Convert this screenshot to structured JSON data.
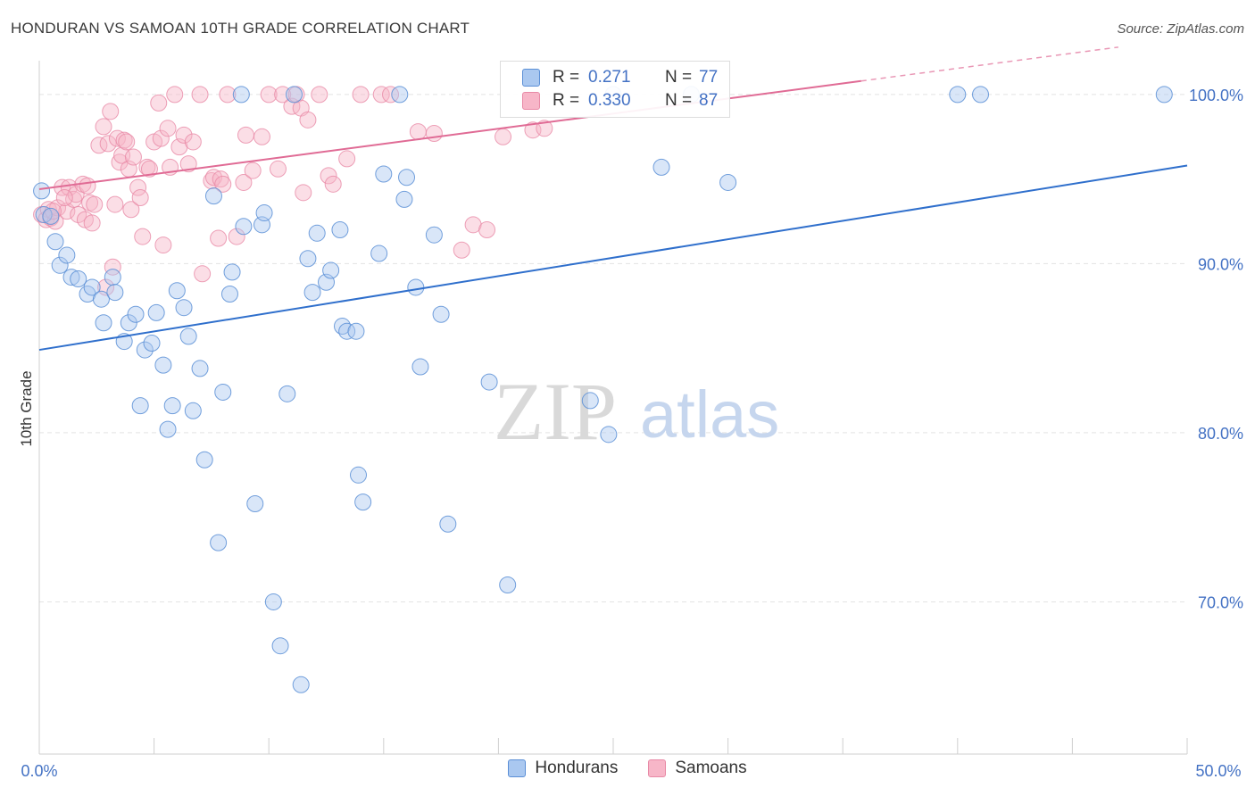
{
  "header": {
    "title": "HONDURAN VS SAMOAN 10TH GRADE CORRELATION CHART",
    "source": "Source: ZipAtlas.com"
  },
  "watermark": {
    "zip": "ZIP",
    "atlas": "atlas"
  },
  "colors": {
    "honduran_fill": "#aac8f0",
    "honduran_stroke": "#5b8fd6",
    "honduran_line": "#2f6fcc",
    "samoan_fill": "#f7b6c8",
    "samoan_stroke": "#e889a6",
    "samoan_line": "#e06b95",
    "tick_label": "#4472c4",
    "grid": "#e3e3e3"
  },
  "legend_top": {
    "rows": [
      {
        "r_label": "R =",
        "r_value": "0.271",
        "n_label": "N =",
        "n_value": "77"
      },
      {
        "r_label": "R =",
        "r_value": "0.330",
        "n_label": "N =",
        "n_value": "87"
      }
    ]
  },
  "legend_bottom": {
    "items": [
      "Hondurans",
      "Samoans"
    ]
  },
  "chart_data": {
    "type": "scatter",
    "ylabel": "10th Grade",
    "xlim": [
      0,
      50
    ],
    "ylim": [
      61,
      102
    ],
    "x_tick_labels": [
      "0.0%",
      "50.0%"
    ],
    "y_ticks": [
      70,
      80,
      90,
      100
    ],
    "y_tick_labels": [
      "70.0%",
      "80.0%",
      "90.0%",
      "100.0%"
    ],
    "grid": true,
    "legend_position": "top-center",
    "series": [
      {
        "name": "Hondurans",
        "r": 0.271,
        "n": 77,
        "trend": {
          "x0": 0,
          "y0": 84.9,
          "x1": 50,
          "y1": 95.8
        },
        "points": [
          [
            0.1,
            94.3
          ],
          [
            0.2,
            92.9
          ],
          [
            0.7,
            91.3
          ],
          [
            0.9,
            89.9
          ],
          [
            1.2,
            90.5
          ],
          [
            1.4,
            89.2
          ],
          [
            1.7,
            89.1
          ],
          [
            2.1,
            88.2
          ],
          [
            2.3,
            88.6
          ],
          [
            2.7,
            87.9
          ],
          [
            2.8,
            86.5
          ],
          [
            3.2,
            89.2
          ],
          [
            3.3,
            88.3
          ],
          [
            3.7,
            85.4
          ],
          [
            3.9,
            86.5
          ],
          [
            4.2,
            87.0
          ],
          [
            4.4,
            81.6
          ],
          [
            4.6,
            84.9
          ],
          [
            4.9,
            85.3
          ],
          [
            5.1,
            87.1
          ],
          [
            5.4,
            84.0
          ],
          [
            5.6,
            80.2
          ],
          [
            5.8,
            81.6
          ],
          [
            6.0,
            88.4
          ],
          [
            6.3,
            87.4
          ],
          [
            6.5,
            85.7
          ],
          [
            6.7,
            81.3
          ],
          [
            7.0,
            83.8
          ],
          [
            7.2,
            78.4
          ],
          [
            7.6,
            94.0
          ],
          [
            7.8,
            73.5
          ],
          [
            8.0,
            82.4
          ],
          [
            8.3,
            88.2
          ],
          [
            8.4,
            89.5
          ],
          [
            8.8,
            100.0
          ],
          [
            8.9,
            92.2
          ],
          [
            9.4,
            75.8
          ],
          [
            9.7,
            92.3
          ],
          [
            9.8,
            93.0
          ],
          [
            10.2,
            70.0
          ],
          [
            10.5,
            67.4
          ],
          [
            10.8,
            82.3
          ],
          [
            11.1,
            100.0
          ],
          [
            11.4,
            65.1
          ],
          [
            11.7,
            90.3
          ],
          [
            11.9,
            88.3
          ],
          [
            12.1,
            91.8
          ],
          [
            12.5,
            88.9
          ],
          [
            12.7,
            89.6
          ],
          [
            13.1,
            92.0
          ],
          [
            13.2,
            86.3
          ],
          [
            13.4,
            86.0
          ],
          [
            13.8,
            86.0
          ],
          [
            13.9,
            77.5
          ],
          [
            14.1,
            75.9
          ],
          [
            14.8,
            90.6
          ],
          [
            15.0,
            95.3
          ],
          [
            15.7,
            100.0
          ],
          [
            15.9,
            93.8
          ],
          [
            16.0,
            95.1
          ],
          [
            16.4,
            88.6
          ],
          [
            16.6,
            83.9
          ],
          [
            17.2,
            91.7
          ],
          [
            17.5,
            87.0
          ],
          [
            17.8,
            74.6
          ],
          [
            19.6,
            83.0
          ],
          [
            20.4,
            71.0
          ],
          [
            24.0,
            81.9
          ],
          [
            24.8,
            79.9
          ],
          [
            25.0,
            100.0
          ],
          [
            27.1,
            95.7
          ],
          [
            28.4,
            100.0
          ],
          [
            30.0,
            94.8
          ],
          [
            40.0,
            100.0
          ],
          [
            41.0,
            100.0
          ],
          [
            49.0,
            100.0
          ],
          [
            0.5,
            92.8
          ]
        ]
      },
      {
        "name": "Samoans",
        "r": 0.33,
        "n": 87,
        "trend": {
          "x0": 0,
          "y0": 94.4,
          "x1": 35.8,
          "y1": 100.8,
          "dash_x1": 47,
          "dash_y1": 102.8
        },
        "points": [
          [
            0.1,
            92.9
          ],
          [
            0.3,
            92.6
          ],
          [
            0.4,
            93.2
          ],
          [
            0.5,
            92.7
          ],
          [
            0.7,
            92.5
          ],
          [
            0.8,
            93.3
          ],
          [
            1.0,
            94.5
          ],
          [
            1.2,
            93.1
          ],
          [
            1.3,
            94.5
          ],
          [
            1.5,
            93.8
          ],
          [
            1.6,
            94.1
          ],
          [
            1.7,
            92.9
          ],
          [
            1.9,
            94.7
          ],
          [
            2.0,
            92.6
          ],
          [
            2.1,
            94.6
          ],
          [
            2.2,
            93.6
          ],
          [
            2.3,
            92.4
          ],
          [
            2.4,
            93.5
          ],
          [
            2.6,
            97.0
          ],
          [
            2.8,
            98.1
          ],
          [
            2.9,
            88.6
          ],
          [
            3.0,
            97.1
          ],
          [
            3.1,
            99.0
          ],
          [
            3.2,
            89.8
          ],
          [
            3.3,
            93.5
          ],
          [
            3.4,
            97.4
          ],
          [
            3.5,
            96.0
          ],
          [
            3.6,
            96.4
          ],
          [
            3.7,
            97.3
          ],
          [
            3.8,
            97.2
          ],
          [
            3.9,
            95.6
          ],
          [
            4.0,
            93.2
          ],
          [
            4.1,
            96.3
          ],
          [
            4.3,
            94.5
          ],
          [
            4.4,
            93.9
          ],
          [
            4.5,
            91.6
          ],
          [
            4.7,
            95.7
          ],
          [
            4.8,
            95.6
          ],
          [
            5.0,
            97.2
          ],
          [
            5.2,
            99.5
          ],
          [
            5.3,
            97.4
          ],
          [
            5.4,
            91.1
          ],
          [
            5.6,
            98.0
          ],
          [
            5.7,
            95.7
          ],
          [
            5.9,
            100.0
          ],
          [
            6.1,
            96.9
          ],
          [
            6.3,
            97.6
          ],
          [
            6.5,
            95.9
          ],
          [
            6.7,
            97.2
          ],
          [
            7.0,
            100.0
          ],
          [
            7.1,
            89.4
          ],
          [
            7.5,
            94.9
          ],
          [
            7.6,
            95.1
          ],
          [
            7.8,
            91.5
          ],
          [
            7.9,
            95.0
          ],
          [
            8.0,
            94.7
          ],
          [
            8.2,
            100.0
          ],
          [
            8.6,
            91.6
          ],
          [
            8.9,
            94.8
          ],
          [
            9.0,
            97.6
          ],
          [
            9.3,
            95.5
          ],
          [
            9.7,
            97.5
          ],
          [
            10.0,
            100.0
          ],
          [
            10.4,
            95.6
          ],
          [
            10.6,
            100.0
          ],
          [
            11.0,
            99.3
          ],
          [
            11.2,
            100.0
          ],
          [
            11.4,
            99.2
          ],
          [
            11.5,
            94.2
          ],
          [
            11.7,
            98.5
          ],
          [
            12.2,
            100.0
          ],
          [
            12.6,
            95.2
          ],
          [
            12.8,
            94.7
          ],
          [
            13.4,
            96.2
          ],
          [
            14.0,
            100.0
          ],
          [
            14.9,
            100.0
          ],
          [
            15.3,
            100.0
          ],
          [
            16.5,
            97.8
          ],
          [
            17.2,
            97.7
          ],
          [
            18.4,
            90.8
          ],
          [
            18.9,
            92.3
          ],
          [
            19.5,
            92.0
          ],
          [
            20.2,
            97.5
          ],
          [
            21.5,
            97.9
          ],
          [
            22.0,
            98.0
          ],
          [
            0.6,
            93.1
          ],
          [
            1.1,
            93.9
          ]
        ]
      }
    ]
  }
}
